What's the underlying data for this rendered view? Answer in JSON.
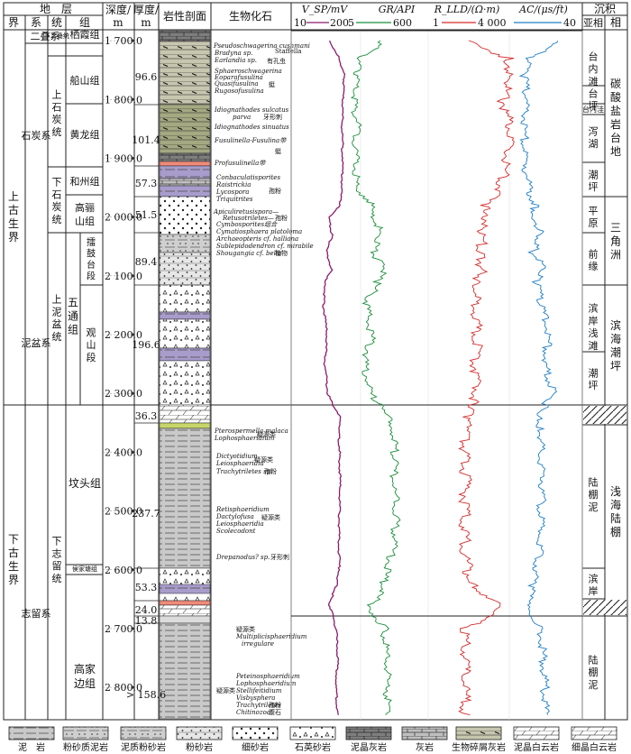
{
  "header": {
    "stratum": "地　层",
    "jie": "界",
    "xi": "系",
    "tong": "统",
    "zu": "组",
    "depth1": "深度/",
    "depth2": "m",
    "thick1": "厚度/",
    "thick2": "m",
    "lith": "岩性剖面",
    "fossil": "生物化石",
    "sed": "沉积",
    "sed_xiang": "相",
    "sed_sub": "亚相",
    "sed_xiang2": "相"
  },
  "logs": {
    "vsp": {
      "label": "V_SP/mV",
      "min": "10",
      "max": "200",
      "color": "#8b1a6b"
    },
    "gr": {
      "label": "GR/API",
      "min": "5",
      "max": "600",
      "color": "#1a8f3a"
    },
    "rlld": {
      "label": "R_LLD/(Ω·m)",
      "min": "1",
      "max": "4 000",
      "color": "#d62b2b"
    },
    "ac": {
      "label": "AC/(μs/ft)",
      "min": "",
      "max": "40",
      "color": "#1f7fc8"
    }
  },
  "jie": [
    "上古生界",
    "下古生界"
  ],
  "xi": [
    "二叠系",
    "石炭系",
    "泥盆系",
    "志留系"
  ],
  "tong": [
    "下二叠统",
    "上石炭统",
    "下石炭统",
    "上泥盆统",
    "下志留统"
  ],
  "zu": [
    "栖霞组",
    "船山组",
    "黄龙组",
    "和州组",
    "高骊山组",
    "五通组",
    "坟头组",
    "高家边组"
  ],
  "duan": [
    "擂鼓台段",
    "观山段"
  ],
  "depth_ticks": [
    "1 700.0",
    "1 800.0",
    "1 900.0",
    "2 000.0",
    "2 100.0",
    "2 200.0",
    "2 300.0",
    "2 400.0",
    "2 500.0",
    "2 600.0",
    "2 700.0",
    "2 800.0"
  ],
  "thickness": [
    "96.6",
    "101.4",
    "57.3",
    "51.5",
    "89.4",
    "196.6",
    "36.3",
    "237.7",
    "53.3",
    "24.0",
    "13.8",
    "> 158.6"
  ],
  "fossils": [
    "Pseudoschwagerina cushmani",
    "Bradyna sp.",
    "Staffella",
    "Earlandia sp.",
    "有孔虫",
    "Sphaeroschwagerina",
    "Eoparafusulina",
    "Quasifusulina",
    "Rugosofusulina",
    "蜓",
    "Idiognathodes sulcatus",
    "parva",
    "牙形刺",
    "Idiognathodes sinuatus",
    "Fusulinella-Fusulina带",
    "蜓",
    "Profusulinella带",
    "Conbaculatisporites",
    "Raistrickia",
    "Lycospora",
    "孢粉",
    "Triquitrites",
    "Apiculiretusispora—",
    "Retusotriletes—",
    "孢粉",
    "Cymbosporites组合",
    "Cymatiosphaera platoloma",
    "Archaeopteris cf. halliana",
    "Sublepidodendron cf. mirabile",
    "Shougangia cf. bella",
    "植物",
    "Pterospermella malaca",
    "Lophosphaeridium",
    "疑源类",
    "Dictyotidium",
    "Leiosphaeridia",
    "疑源类",
    "Trachytriletes sp.",
    "孢粉",
    "Retisphaeridium",
    "Dactylofusa",
    "疑源类",
    "Leiosphaeridia",
    "Scolecodont",
    "Drepanodus? sp.",
    "牙形刺",
    "疑源类",
    "Multiplicisphaeridium",
    "irregulare",
    "疑源类",
    "Peteinosphaeridium",
    "Lophosphaeridium",
    "Stellifeitidium",
    "Visbysphera",
    "Trachytriletes",
    "Chitinozoa",
    "孢粉",
    "腹石"
  ],
  "subfacies": [
    "台内滩",
    "台坪",
    "台内洼",
    "泻湖",
    "潮坪",
    "平原",
    "前缘",
    "滨岸浅滩",
    "潮坪",
    "陆棚泥",
    "滨岸",
    "陆棚泥"
  ],
  "facies": [
    "碳酸盐岩台地",
    "三角洲",
    "滨海潮坪",
    "浅海陆棚"
  ],
  "legend": [
    "泥　岩",
    "粉砂质泥岩",
    "泥质粉砂岩",
    "粉砂岩",
    "细砂岩",
    "石英砂岩",
    "泥晶灰岩",
    "灰岩",
    "生物碎屑灰岩",
    "泥晶白云岩",
    "细晶白云岩"
  ],
  "chart_data": {
    "type": "line",
    "title": "",
    "xlabel": "",
    "ylabel": "深度/m",
    "ylim": [
      1690,
      2860
    ],
    "y_ticks": [
      1700,
      1800,
      1900,
      2000,
      2100,
      2200,
      2300,
      2400,
      2500,
      2600,
      2700,
      2800
    ],
    "invert_y": true,
    "grid": true,
    "series": [
      {
        "name": "V_SP/mV",
        "xlim": [
          10,
          200
        ],
        "color": "#8b1a6b",
        "y": [
          1700,
          1730,
          1760,
          1800,
          1850,
          1900,
          1950,
          1980,
          2000,
          2030,
          2060,
          2090,
          2110,
          2150,
          2200,
          2250,
          2300,
          2320,
          2340,
          2360,
          2400,
          2450,
          2500,
          2550,
          2600,
          2630,
          2650,
          2660,
          2700,
          2750,
          2800,
          2850
        ],
        "x": [
          120,
          150,
          165,
          160,
          158,
          160,
          157,
          150,
          118,
          128,
          112,
          126,
          108,
          102,
          112,
          106,
          115,
          130,
          150,
          148,
          150,
          152,
          150,
          148,
          150,
          140,
          125,
          120,
          140,
          145,
          140,
          145
        ]
      },
      {
        "name": "GR/API",
        "xlim": [
          5,
          600
        ],
        "color": "#1a8f3a",
        "y": [
          1700,
          1730,
          1760,
          1800,
          1850,
          1900,
          1950,
          1980,
          2000,
          2030,
          2060,
          2090,
          2110,
          2150,
          2200,
          2250,
          2300,
          2320,
          2340,
          2360,
          2400,
          2450,
          2500,
          2550,
          2600,
          2630,
          2650,
          2660,
          2700,
          2750,
          2800,
          2850
        ],
        "x": [
          330,
          150,
          130,
          120,
          140,
          125,
          130,
          260,
          260,
          300,
          250,
          320,
          280,
          200,
          240,
          190,
          230,
          300,
          380,
          390,
          400,
          390,
          410,
          400,
          350,
          300,
          280,
          200,
          330,
          340,
          350,
          345
        ]
      },
      {
        "name": "R_LLD/(Ω·m)",
        "xlim": [
          1,
          4000
        ],
        "color": "#d62b2b",
        "y": [
          1700,
          1730,
          1760,
          1800,
          1850,
          1900,
          1950,
          1980,
          2000,
          2030,
          2060,
          2090,
          2110,
          2150,
          2200,
          2250,
          2300,
          2320,
          2340,
          2360,
          2400,
          2450,
          2500,
          2550,
          2600,
          2630,
          2650,
          2660,
          2700,
          2750,
          2800,
          2850
        ],
        "x": [
          60,
          2500,
          3000,
          1500,
          2800,
          2000,
          1200,
          300,
          200,
          250,
          180,
          220,
          150,
          120,
          140,
          130,
          150,
          100,
          60,
          55,
          50,
          52,
          50,
          48,
          60,
          120,
          600,
          1800,
          55,
          52,
          50,
          50
        ]
      },
      {
        "name": "AC/(μs/ft)",
        "xlim": [
          0,
          40
        ],
        "color": "#1f7fc8",
        "y": [
          1700,
          1730,
          1760,
          1800,
          1850,
          1900,
          1950,
          1980,
          2000,
          2030,
          2060,
          2090,
          2110,
          2150,
          2200,
          2250,
          2300,
          2320,
          2340,
          2360,
          2400,
          2450,
          2500,
          2550,
          2600,
          2630,
          2650,
          2660,
          2700,
          2750,
          2800,
          2850
        ],
        "x": [
          30,
          14,
          12,
          13,
          12,
          12,
          14,
          17,
          17,
          20,
          16,
          22,
          18,
          20,
          24,
          22,
          26,
          22,
          19,
          20,
          20,
          21,
          20,
          20,
          18,
          16,
          14,
          12,
          20,
          21,
          22,
          22
        ]
      }
    ]
  }
}
